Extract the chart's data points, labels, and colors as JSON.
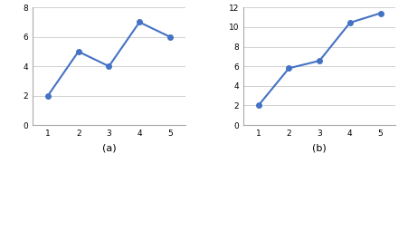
{
  "chart_a": {
    "x": [
      1,
      2,
      3,
      4,
      5
    ],
    "y": [
      2,
      5,
      4,
      7,
      6
    ],
    "ylim": [
      0,
      8
    ],
    "yticks": [
      0,
      2,
      4,
      6,
      8
    ],
    "xlim": [
      0.5,
      5.5
    ],
    "xticks": [
      1,
      2,
      3,
      4,
      5
    ],
    "label": "(a)"
  },
  "chart_b": {
    "x": [
      1,
      2,
      3,
      4,
      5
    ],
    "y": [
      2,
      5.8,
      6.56,
      10.45,
      11.42
    ],
    "ylim": [
      0,
      12
    ],
    "yticks": [
      0,
      2,
      4,
      6,
      8,
      10,
      12
    ],
    "xlim": [
      0.5,
      5.5
    ],
    "xticks": [
      1,
      2,
      3,
      4,
      5
    ],
    "label": "(b)"
  },
  "line_color": "#4472C4",
  "marker": "o",
  "marker_size": 4,
  "line_width": 1.5,
  "grid_color": "#BFBFBF",
  "grid_linewidth": 0.5,
  "background_color": "#FFFFFF",
  "label_fontsize": 8,
  "tick_fontsize": 6.5
}
